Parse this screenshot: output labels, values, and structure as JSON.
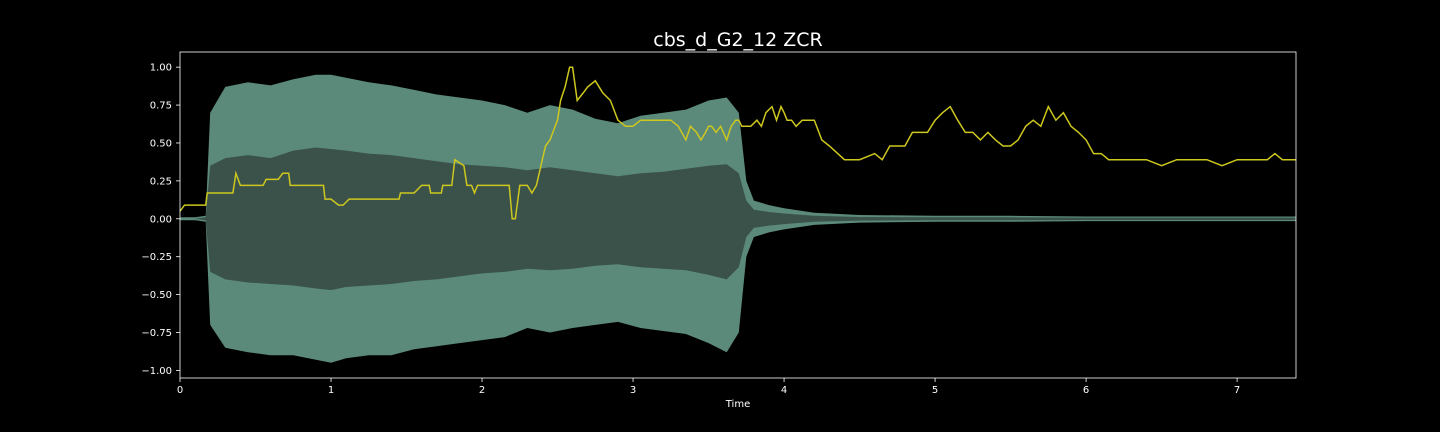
{
  "chart_data": {
    "type": "line",
    "title": "cbs_d_G2_12 ZCR",
    "xlabel": "Time",
    "ylabel": "",
    "xlim": [
      0,
      7.39
    ],
    "ylim": [
      -1.05,
      1.1
    ],
    "x_ticks": [
      0,
      1,
      2,
      3,
      4,
      5,
      6,
      7
    ],
    "x_tick_labels": [
      "0",
      "1",
      "2",
      "3",
      "4",
      "5",
      "6",
      "7"
    ],
    "y_ticks": [
      1.0,
      0.75,
      0.5,
      0.25,
      0.0,
      -0.25,
      -0.5,
      -0.75,
      -1.0
    ],
    "y_tick_labels": [
      "1.00",
      "0.75",
      "0.50",
      "0.25",
      "0.00",
      "−0.25",
      "−0.50",
      "−0.75",
      "−1.00"
    ],
    "grid": false,
    "legend": "none",
    "colors": {
      "background": "#000000",
      "axes": "#ffffff",
      "waveform_outer": "#5b8a7b",
      "waveform_inner": "#3b524a",
      "zcr_line": "#cdc71e"
    },
    "waveform_envelope": {
      "x": [
        0.0,
        0.1,
        0.17,
        0.2,
        0.3,
        0.45,
        0.6,
        0.75,
        0.9,
        1.0,
        1.1,
        1.25,
        1.4,
        1.55,
        1.7,
        1.85,
        2.0,
        2.15,
        2.3,
        2.45,
        2.6,
        2.75,
        2.9,
        3.05,
        3.2,
        3.35,
        3.5,
        3.62,
        3.7,
        3.75,
        3.8,
        3.9,
        4.0,
        4.2,
        4.5,
        5.0,
        5.5,
        6.0,
        6.5,
        7.0,
        7.39
      ],
      "upper": [
        0.01,
        0.01,
        0.02,
        0.7,
        0.87,
        0.9,
        0.88,
        0.92,
        0.95,
        0.95,
        0.93,
        0.9,
        0.88,
        0.85,
        0.82,
        0.8,
        0.78,
        0.75,
        0.7,
        0.75,
        0.72,
        0.66,
        0.63,
        0.68,
        0.7,
        0.72,
        0.78,
        0.8,
        0.7,
        0.25,
        0.12,
        0.09,
        0.07,
        0.04,
        0.025,
        0.02,
        0.02,
        0.015,
        0.015,
        0.015,
        0.015
      ],
      "lower": [
        -0.01,
        -0.01,
        -0.02,
        -0.7,
        -0.85,
        -0.88,
        -0.9,
        -0.9,
        -0.93,
        -0.95,
        -0.92,
        -0.9,
        -0.9,
        -0.86,
        -0.84,
        -0.82,
        -0.8,
        -0.78,
        -0.72,
        -0.75,
        -0.72,
        -0.7,
        -0.68,
        -0.72,
        -0.74,
        -0.76,
        -0.82,
        -0.88,
        -0.75,
        -0.25,
        -0.12,
        -0.09,
        -0.07,
        -0.04,
        -0.025,
        -0.02,
        -0.02,
        -0.015,
        -0.015,
        -0.015,
        -0.015
      ],
      "inner_upper": [
        0.0,
        0.0,
        0.01,
        0.35,
        0.4,
        0.42,
        0.4,
        0.45,
        0.47,
        0.46,
        0.45,
        0.43,
        0.42,
        0.4,
        0.38,
        0.36,
        0.35,
        0.34,
        0.32,
        0.34,
        0.32,
        0.3,
        0.28,
        0.3,
        0.31,
        0.33,
        0.35,
        0.36,
        0.3,
        0.12,
        0.06,
        0.045,
        0.035,
        0.02,
        0.012,
        0.01,
        0.01,
        0.008,
        0.008,
        0.008,
        0.008
      ],
      "inner_lower": [
        0.0,
        0.0,
        -0.01,
        -0.35,
        -0.4,
        -0.42,
        -0.43,
        -0.44,
        -0.46,
        -0.47,
        -0.45,
        -0.44,
        -0.43,
        -0.41,
        -0.4,
        -0.38,
        -0.36,
        -0.35,
        -0.33,
        -0.34,
        -0.33,
        -0.31,
        -0.3,
        -0.32,
        -0.33,
        -0.34,
        -0.37,
        -0.4,
        -0.32,
        -0.12,
        -0.06,
        -0.045,
        -0.035,
        -0.02,
        -0.012,
        -0.01,
        -0.01,
        -0.008,
        -0.008,
        -0.008,
        -0.008
      ]
    },
    "series": [
      {
        "x": [
          0.0,
          0.03,
          0.17,
          0.18,
          0.35,
          0.37,
          0.4,
          0.55,
          0.57,
          0.65,
          0.68,
          0.72,
          0.73,
          0.95,
          0.96,
          1.0,
          1.05,
          1.08,
          1.12,
          1.2,
          1.3,
          1.4,
          1.45,
          1.46,
          1.55,
          1.6,
          1.65,
          1.66,
          1.73,
          1.74,
          1.8,
          1.82,
          1.88,
          1.9,
          1.93,
          1.95,
          1.97,
          2.0,
          2.1,
          2.15,
          2.18,
          2.2,
          2.22,
          2.25,
          2.3,
          2.33,
          2.36,
          2.42,
          2.45,
          2.5,
          2.52,
          2.55,
          2.58,
          2.6,
          2.63,
          2.67,
          2.7,
          2.75,
          2.8,
          2.85,
          2.9,
          2.95,
          3.0,
          3.05,
          3.1,
          3.2,
          3.25,
          3.3,
          3.35,
          3.38,
          3.42,
          3.45,
          3.48,
          3.5,
          3.52,
          3.55,
          3.58,
          3.62,
          3.65,
          3.68,
          3.7,
          3.72,
          3.78,
          3.82,
          3.85,
          3.88,
          3.92,
          3.95,
          3.98,
          4.0,
          4.02,
          4.05,
          4.08,
          4.12,
          4.15,
          4.2,
          4.25,
          4.3,
          4.4,
          4.45,
          4.5,
          4.6,
          4.65,
          4.7,
          4.8,
          4.85,
          4.9,
          4.95,
          5.0,
          5.05,
          5.1,
          5.15,
          5.2,
          5.25,
          5.3,
          5.35,
          5.4,
          5.45,
          5.5,
          5.55,
          5.6,
          5.65,
          5.7,
          5.75,
          5.8,
          5.85,
          5.9,
          5.95,
          6.0,
          6.05,
          6.1,
          6.15,
          6.2,
          6.3,
          6.4,
          6.5,
          6.6,
          6.7,
          6.8,
          6.9,
          7.0,
          7.1,
          7.2,
          7.25,
          7.3,
          7.39
        ],
        "values": [
          0.05,
          0.09,
          0.09,
          0.17,
          0.17,
          0.3,
          0.22,
          0.22,
          0.26,
          0.26,
          0.3,
          0.3,
          0.22,
          0.22,
          0.13,
          0.13,
          0.09,
          0.09,
          0.13,
          0.13,
          0.13,
          0.13,
          0.13,
          0.17,
          0.17,
          0.22,
          0.22,
          0.17,
          0.17,
          0.22,
          0.22,
          0.39,
          0.35,
          0.22,
          0.22,
          0.17,
          0.22,
          0.22,
          0.22,
          0.22,
          0.22,
          0.0,
          0.0,
          0.22,
          0.22,
          0.17,
          0.22,
          0.48,
          0.52,
          0.65,
          0.78,
          0.87,
          1.0,
          1.0,
          0.78,
          0.83,
          0.87,
          0.91,
          0.83,
          0.78,
          0.65,
          0.61,
          0.61,
          0.65,
          0.65,
          0.65,
          0.65,
          0.61,
          0.52,
          0.61,
          0.57,
          0.52,
          0.57,
          0.61,
          0.61,
          0.57,
          0.61,
          0.52,
          0.61,
          0.65,
          0.65,
          0.61,
          0.61,
          0.65,
          0.61,
          0.7,
          0.74,
          0.65,
          0.74,
          0.7,
          0.65,
          0.65,
          0.61,
          0.65,
          0.65,
          0.65,
          0.52,
          0.48,
          0.39,
          0.39,
          0.39,
          0.43,
          0.39,
          0.48,
          0.48,
          0.57,
          0.57,
          0.57,
          0.65,
          0.7,
          0.74,
          0.65,
          0.57,
          0.57,
          0.52,
          0.57,
          0.52,
          0.48,
          0.48,
          0.52,
          0.61,
          0.65,
          0.61,
          0.74,
          0.65,
          0.7,
          0.61,
          0.57,
          0.52,
          0.43,
          0.43,
          0.39,
          0.39,
          0.39,
          0.39,
          0.35,
          0.39,
          0.39,
          0.39,
          0.35,
          0.39,
          0.39,
          0.39,
          0.43,
          0.39,
          0.39
        ]
      }
    ]
  }
}
